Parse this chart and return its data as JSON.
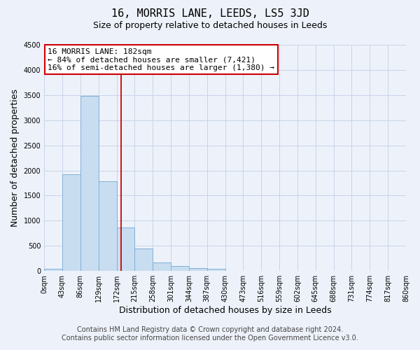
{
  "title": "16, MORRIS LANE, LEEDS, LS5 3JD",
  "subtitle": "Size of property relative to detached houses in Leeds",
  "xlabel": "Distribution of detached houses by size in Leeds",
  "ylabel": "Number of detached properties",
  "footer_line1": "Contains HM Land Registry data © Crown copyright and database right 2024.",
  "footer_line2": "Contains public sector information licensed under the Open Government Licence v3.0.",
  "bin_edges": [
    0,
    43,
    86,
    129,
    172,
    215,
    258,
    301,
    344,
    387,
    430,
    473,
    516,
    559,
    602,
    645,
    688,
    731,
    774,
    817,
    860
  ],
  "bin_labels": [
    "0sqm",
    "43sqm",
    "86sqm",
    "129sqm",
    "172sqm",
    "215sqm",
    "258sqm",
    "301sqm",
    "344sqm",
    "387sqm",
    "430sqm",
    "473sqm",
    "516sqm",
    "559sqm",
    "602sqm",
    "645sqm",
    "688sqm",
    "731sqm",
    "774sqm",
    "817sqm",
    "860sqm"
  ],
  "bar_heights": [
    50,
    1930,
    3490,
    1780,
    860,
    450,
    175,
    95,
    60,
    40,
    0,
    0,
    0,
    0,
    0,
    0,
    0,
    0,
    0,
    0
  ],
  "bar_color": "#c9ddf0",
  "bar_edge_color": "#7fb0d8",
  "grid_color": "#c8d4e8",
  "bg_color": "#edf2fa",
  "vline_x": 182,
  "vline_color": "#cc0000",
  "ylim": [
    0,
    4500
  ],
  "annotation_line1": "16 MORRIS LANE: 182sqm",
  "annotation_line2": "← 84% of detached houses are smaller (7,421)",
  "annotation_line3": "16% of semi-detached houses are larger (1,380) →",
  "annotation_box_color": "#cc0000",
  "title_fontsize": 11,
  "subtitle_fontsize": 9,
  "axis_label_fontsize": 9,
  "tick_fontsize": 7,
  "annotation_fontsize": 8,
  "footer_fontsize": 7
}
